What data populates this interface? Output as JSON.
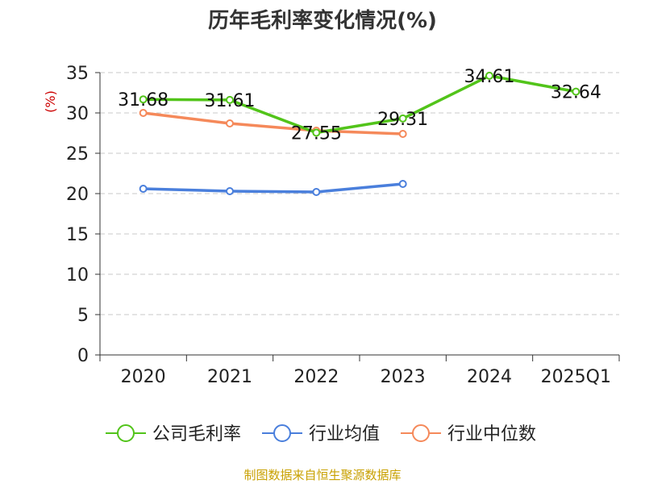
{
  "chart_data": {
    "type": "line",
    "title": "历年毛利率变化情况(%)",
    "ylabel": "(%)",
    "categories": [
      "2020",
      "2021",
      "2022",
      "2023",
      "2024",
      "2025Q1"
    ],
    "ylim": [
      0,
      35
    ],
    "yticks": [
      "0",
      "5",
      "10",
      "15",
      "20",
      "25",
      "30",
      "35"
    ],
    "grid": true,
    "legend_position": "bottom",
    "series": [
      {
        "name": "公司毛利率",
        "color": "#52c41a",
        "values": [
          31.68,
          31.61,
          27.55,
          29.31,
          34.61,
          32.64
        ],
        "labels": [
          "31.68",
          "31.61",
          "27.55",
          "29.31",
          "34.61",
          "32.64"
        ]
      },
      {
        "name": "行业均值",
        "color": "#4a7fdc",
        "values": [
          20.6,
          20.3,
          20.2,
          21.2,
          null,
          null
        ],
        "labels": []
      },
      {
        "name": "行业中位数",
        "color": "#f5895a",
        "values": [
          30.0,
          28.7,
          27.8,
          27.4,
          null,
          null
        ],
        "labels": []
      }
    ],
    "source": "制图数据来自恒生聚源数据库"
  }
}
